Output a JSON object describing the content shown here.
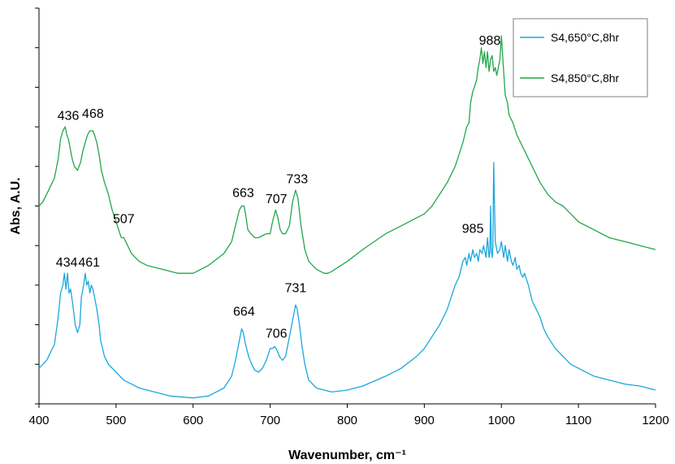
{
  "chart_data": {
    "type": "line",
    "title": "",
    "xlabel": "Wavenumber, cm⁻¹",
    "ylabel": "Abs, A.U.",
    "xlim": [
      400,
      1200
    ],
    "ylim": [
      0,
      10
    ],
    "x_ticks": [
      400,
      500,
      600,
      700,
      800,
      900,
      1000,
      1100,
      1200
    ],
    "y_ticks": [
      0,
      1,
      2,
      3,
      4,
      5,
      6,
      7,
      8,
      9,
      10
    ],
    "y_tick_labels_shown": false,
    "grid": false,
    "legend_position": "top-right",
    "series": [
      {
        "name": "S4,650°C,8hr",
        "color": "#1aa7de",
        "x": [
          400,
          405,
          410,
          415,
          420,
          425,
          428,
          431,
          433,
          435,
          437,
          439,
          441,
          444,
          447,
          450,
          453,
          455,
          458,
          460,
          462,
          464,
          466,
          468,
          470,
          472,
          475,
          478,
          480,
          485,
          490,
          500,
          510,
          520,
          530,
          550,
          570,
          600,
          620,
          640,
          650,
          655,
          660,
          663,
          665,
          668,
          672,
          676,
          680,
          685,
          690,
          695,
          700,
          703,
          706,
          709,
          712,
          716,
          720,
          724,
          728,
          731,
          733,
          735,
          738,
          741,
          745,
          750,
          760,
          770,
          780,
          800,
          820,
          850,
          870,
          890,
          900,
          910,
          920,
          930,
          940,
          945,
          950,
          953,
          955,
          958,
          960,
          963,
          965,
          968,
          970,
          972,
          975,
          977,
          980,
          982,
          984,
          985,
          986,
          987,
          988,
          989,
          990,
          992,
          995,
          998,
          1000,
          1003,
          1005,
          1008,
          1010,
          1013,
          1015,
          1018,
          1020,
          1023,
          1025,
          1028,
          1030,
          1035,
          1040,
          1045,
          1050,
          1055,
          1060,
          1070,
          1080,
          1090,
          1100,
          1120,
          1140,
          1160,
          1180,
          1200
        ],
        "y": [
          0.9,
          1.0,
          1.1,
          1.3,
          1.5,
          2.2,
          2.8,
          3.0,
          3.3,
          2.9,
          3.3,
          2.8,
          2.9,
          2.5,
          2.0,
          1.8,
          2.0,
          2.7,
          3.0,
          3.3,
          3.0,
          3.1,
          2.8,
          3.0,
          2.9,
          2.7,
          2.4,
          2.0,
          1.6,
          1.2,
          1.0,
          0.8,
          0.6,
          0.5,
          0.4,
          0.3,
          0.2,
          0.15,
          0.2,
          0.4,
          0.7,
          1.1,
          1.6,
          1.9,
          1.8,
          1.5,
          1.2,
          1.0,
          0.85,
          0.8,
          0.9,
          1.1,
          1.4,
          1.4,
          1.45,
          1.35,
          1.2,
          1.1,
          1.2,
          1.6,
          2.0,
          2.3,
          2.5,
          2.4,
          2.0,
          1.5,
          1.0,
          0.6,
          0.4,
          0.35,
          0.3,
          0.35,
          0.45,
          0.7,
          0.9,
          1.2,
          1.4,
          1.7,
          2.0,
          2.4,
          3.0,
          3.2,
          3.6,
          3.7,
          3.5,
          3.8,
          3.6,
          3.9,
          3.7,
          3.8,
          3.6,
          3.9,
          3.8,
          4.0,
          3.7,
          4.2,
          3.7,
          3.8,
          5.0,
          3.9,
          3.7,
          4.0,
          6.1,
          4.1,
          3.8,
          3.9,
          4.1,
          3.7,
          4.0,
          3.6,
          3.9,
          3.6,
          3.5,
          3.7,
          3.4,
          3.5,
          3.3,
          3.2,
          3.3,
          3.0,
          2.6,
          2.4,
          2.2,
          1.9,
          1.7,
          1.4,
          1.2,
          1.0,
          0.9,
          0.7,
          0.6,
          0.5,
          0.45,
          0.35
        ]
      },
      {
        "name": "S4,850°C,8hr",
        "color": "#22a74a",
        "x": [
          400,
          405,
          410,
          415,
          420,
          425,
          428,
          431,
          434,
          436,
          438,
          440,
          443,
          446,
          450,
          454,
          457,
          460,
          463,
          466,
          468,
          470,
          472,
          475,
          478,
          481,
          485,
          490,
          495,
          500,
          505,
          507,
          510,
          515,
          520,
          530,
          540,
          550,
          560,
          570,
          580,
          590,
          600,
          620,
          640,
          650,
          655,
          660,
          663,
          666,
          668,
          671,
          675,
          680,
          685,
          690,
          695,
          700,
          703,
          707,
          710,
          713,
          716,
          720,
          725,
          729,
          733,
          736,
          740,
          745,
          750,
          760,
          770,
          775,
          780,
          800,
          820,
          850,
          870,
          890,
          900,
          910,
          920,
          930,
          940,
          945,
          950,
          955,
          958,
          960,
          963,
          965,
          968,
          970,
          972,
          974,
          976,
          978,
          980,
          982,
          984,
          986,
          988,
          990,
          992,
          994,
          996,
          998,
          1000,
          1002,
          1005,
          1008,
          1010,
          1015,
          1020,
          1030,
          1040,
          1050,
          1060,
          1070,
          1080,
          1090,
          1100,
          1120,
          1140,
          1160,
          1180,
          1200
        ],
        "y": [
          5.0,
          5.1,
          5.3,
          5.5,
          5.7,
          6.2,
          6.7,
          6.9,
          7.0,
          6.8,
          6.7,
          6.5,
          6.2,
          6.0,
          5.9,
          6.1,
          6.4,
          6.6,
          6.8,
          6.9,
          6.9,
          6.9,
          6.8,
          6.6,
          6.3,
          5.9,
          5.6,
          5.3,
          4.9,
          4.6,
          4.3,
          4.2,
          4.2,
          4.0,
          3.8,
          3.6,
          3.5,
          3.45,
          3.4,
          3.35,
          3.3,
          3.3,
          3.3,
          3.5,
          3.8,
          4.1,
          4.5,
          4.9,
          5.0,
          5.0,
          4.8,
          4.4,
          4.3,
          4.2,
          4.2,
          4.25,
          4.3,
          4.3,
          4.6,
          4.9,
          4.7,
          4.4,
          4.3,
          4.3,
          4.5,
          5.1,
          5.4,
          5.2,
          4.5,
          3.9,
          3.6,
          3.4,
          3.3,
          3.3,
          3.35,
          3.6,
          3.9,
          4.3,
          4.5,
          4.7,
          4.8,
          5.0,
          5.3,
          5.6,
          6.0,
          6.3,
          6.6,
          7.0,
          7.1,
          7.6,
          7.9,
          8.0,
          8.2,
          8.5,
          8.7,
          9.0,
          8.6,
          8.9,
          8.5,
          8.9,
          8.4,
          8.7,
          8.8,
          8.4,
          8.5,
          8.3,
          8.5,
          8.7,
          9.3,
          8.7,
          7.8,
          7.6,
          7.3,
          7.1,
          6.8,
          6.4,
          6.0,
          5.6,
          5.3,
          5.1,
          5.0,
          4.8,
          4.6,
          4.4,
          4.2,
          4.1,
          4.0,
          3.9
        ]
      }
    ],
    "annotations": [
      {
        "text": "436",
        "x": 438,
        "y": 7.05
      },
      {
        "text": "468",
        "x": 470,
        "y": 7.1
      },
      {
        "text": "507",
        "x": 510,
        "y": 4.45
      },
      {
        "text": "663",
        "x": 665,
        "y": 5.1
      },
      {
        "text": "707",
        "x": 708,
        "y": 4.95
      },
      {
        "text": "733",
        "x": 735,
        "y": 5.45
      },
      {
        "text": "988",
        "x": 985,
        "y": 8.95
      },
      {
        "text": "434",
        "x": 436,
        "y": 3.35
      },
      {
        "text": "461",
        "x": 465,
        "y": 3.35
      },
      {
        "text": "664",
        "x": 666,
        "y": 2.1
      },
      {
        "text": "706",
        "x": 708,
        "y": 1.55
      },
      {
        "text": "731",
        "x": 733,
        "y": 2.7
      },
      {
        "text": "985",
        "x": 963,
        "y": 4.2
      }
    ]
  }
}
